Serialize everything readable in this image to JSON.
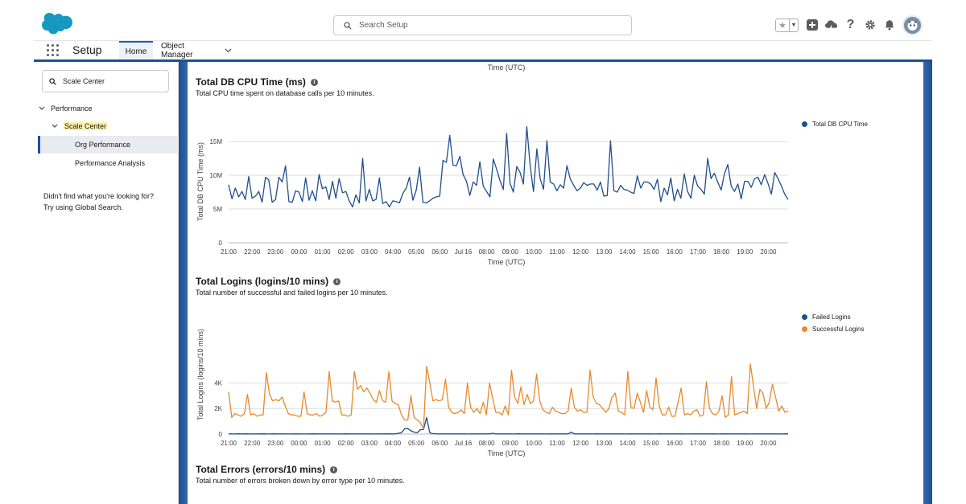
{
  "header": {
    "search_placeholder": "Search Setup",
    "brand_color": "#1798c1"
  },
  "nav": {
    "app_name": "Setup",
    "tabs": [
      {
        "label": "Home"
      },
      {
        "label": "Object Manager"
      }
    ]
  },
  "sidebar": {
    "quick_find_value": "Scale Center",
    "items": [
      {
        "label": "Performance"
      },
      {
        "label": "Scale Center"
      },
      {
        "label": "Org Performance"
      },
      {
        "label": "Performance Analysis"
      }
    ],
    "help_line1": "Didn't find what you're looking for?",
    "help_line2": "Try using Global Search."
  },
  "main": {
    "top_axis_title": "Time (UTC)",
    "cpu_section": {
      "title": "Total DB CPU Time (ms)",
      "subtitle": "Total CPU time spent on database calls per 10 minutes."
    },
    "logins_section": {
      "title": "Total Logins (logins/10 mins)",
      "subtitle": "Total number of successful and failed logins per 10 minutes."
    },
    "errors_section": {
      "title": "Total Errors (errors/10 mins)",
      "subtitle": "Total number of errors broken down by error type per 10 minutes."
    }
  },
  "chart_data": [
    {
      "type": "line",
      "title": "Total DB CPU Time (ms)",
      "xlabel": "Time (UTC)",
      "ylabel": "Total DB CPU Time (ms)",
      "x_ticks": [
        "21:00",
        "22:00",
        "23:00",
        "00:00",
        "01:00",
        "02:00",
        "03:00",
        "04:00",
        "05:00",
        "06:00",
        "Jul 16",
        "08:00",
        "09:00",
        "10:00",
        "11:00",
        "12:00",
        "13:00",
        "14:00",
        "15:00",
        "16:00",
        "17:00",
        "18:00",
        "19:00",
        "20:00"
      ],
      "y_ticks": [
        "0",
        "5M",
        "10M",
        "15M"
      ],
      "ylim": [
        0,
        17500000
      ],
      "legend_position": "right",
      "grid": true,
      "series": [
        {
          "name": "Total DB CPU Time",
          "color": "#1f4e8c",
          "values": [
            8.6,
            6.5,
            8.1,
            6.8,
            7.6,
            6.4,
            9.8,
            6.6,
            6.9,
            7.6,
            6.0,
            9.7,
            9.3,
            6.0,
            6.4,
            9.7,
            9.0,
            11.4,
            6.1,
            6.0,
            7.7,
            7.5,
            6.1,
            9.6,
            6.3,
            7.7,
            6.2,
            10.1,
            8.0,
            8.3,
            6.4,
            9.1,
            6.6,
            9.5,
            7.4,
            7.6,
            6.2,
            5.3,
            7.1,
            5.9,
            12.5,
            6.2,
            7.9,
            6.2,
            6.4,
            9.6,
            5.8,
            6.1,
            5.3,
            6.2,
            6.1,
            5.9,
            7.3,
            8.1,
            9.7,
            6.3,
            7.8,
            11.2,
            6.0,
            5.9,
            6.2,
            6.6,
            6.8,
            6.9,
            12.2,
            11.9,
            15.9,
            11.5,
            11.4,
            12.8,
            10.1,
            9.1,
            7.0,
            9.0,
            8.5,
            12.0,
            8.4,
            7.6,
            6.8,
            12.4,
            10.9,
            9.2,
            7.9,
            16.2,
            8.8,
            7.5,
            11.3,
            10.4,
            8.7,
            17.2,
            11.4,
            7.6,
            13.9,
            9.5,
            7.9,
            15.1,
            9.0,
            8.7,
            7.7,
            8.6,
            8.1,
            11.4,
            9.4,
            8.5,
            7.7,
            8.1,
            8.9,
            8.5,
            8.7,
            8.7,
            7.8,
            9.0,
            6.9,
            7.0,
            15.1,
            7.7,
            7.5,
            8.5,
            7.9,
            7.8,
            7.5,
            7.3,
            9.9,
            8.1,
            9.0,
            9.0,
            8.7,
            7.9,
            9.4,
            6.1,
            8.1,
            7.1,
            9.6,
            6.2,
            7.9,
            6.6,
            10.2,
            7.6,
            6.6,
            10.0,
            8.4,
            7.9,
            7.2,
            12.5,
            9.5,
            10.3,
            9.0,
            7.8,
            10.2,
            11.6,
            8.4,
            7.6,
            8.7,
            6.5,
            9.1,
            9.1,
            8.2,
            9.5,
            9.7,
            8.6,
            10.1,
            8.8,
            7.2,
            10.4,
            9.5,
            8.4,
            7.2,
            6.4
          ]
        }
      ]
    },
    {
      "type": "line",
      "title": "Total Logins (logins/10 mins)",
      "xlabel": "Time (UTC)",
      "ylabel": "Total Logins (logins/10 mins)",
      "x_ticks": [
        "21:00",
        "22:00",
        "23:00",
        "00:00",
        "01:00",
        "02:00",
        "03:00",
        "04:00",
        "05:00",
        "06:00",
        "Jul 16",
        "08:00",
        "09:00",
        "10:00",
        "11:00",
        "12:00",
        "13:00",
        "14:00",
        "15:00",
        "16:00",
        "17:00",
        "18:00",
        "19:00",
        "20:00"
      ],
      "y_ticks": [
        "0",
        "2K",
        "4K"
      ],
      "ylim": [
        0,
        5600
      ],
      "legend_position": "right",
      "grid": true,
      "series": [
        {
          "name": "Failed Logins",
          "color": "#1f4e8c",
          "values": [
            10,
            15,
            8,
            20,
            12,
            10,
            18,
            9,
            14,
            11,
            10,
            16,
            12,
            9,
            20,
            11,
            13,
            10,
            15,
            9,
            12,
            10,
            14,
            11,
            9,
            13,
            10,
            18,
            12,
            11,
            15,
            10,
            12,
            14,
            11,
            10,
            9,
            16,
            12,
            10,
            11,
            13,
            10,
            12,
            15,
            10,
            9,
            11,
            12,
            10,
            14,
            20,
            10,
            12,
            60,
            110,
            420,
            430,
            250,
            150,
            100,
            340,
            350,
            1300,
            100,
            30,
            20,
            12,
            15,
            10,
            11,
            13,
            10,
            12,
            15,
            10,
            9,
            11,
            12,
            10,
            14,
            12,
            10,
            12,
            60,
            15,
            10,
            12,
            14,
            11,
            10,
            9,
            16,
            12,
            10,
            11,
            13,
            10,
            12,
            15,
            10,
            9,
            11,
            12,
            10,
            14,
            12,
            10,
            12,
            150,
            15,
            10,
            12,
            14,
            11,
            10,
            9,
            16,
            12,
            10,
            11,
            13,
            10,
            12,
            15,
            10,
            9,
            11,
            12,
            10,
            14,
            12,
            10,
            12,
            15,
            10,
            9,
            16,
            12,
            10,
            11,
            13,
            10,
            12,
            15,
            10,
            9,
            11,
            12,
            10,
            14,
            12,
            10,
            12,
            15,
            10,
            9,
            16,
            12,
            10,
            11,
            13,
            10,
            12,
            15,
            10,
            9,
            11,
            12,
            10,
            14,
            12,
            10,
            12,
            15,
            10,
            9,
            16,
            12
          ]
        },
        {
          "name": "Successful Logins",
          "color": "#e8892b",
          "values": [
            3300,
            1300,
            1600,
            1500,
            1400,
            1600,
            3100,
            1500,
            1600,
            1400,
            1500,
            1500,
            4800,
            3100,
            2600,
            2700,
            2600,
            2900,
            2200,
            1600,
            1500,
            1500,
            1400,
            1400,
            3300,
            1600,
            1500,
            1500,
            1600,
            1400,
            1500,
            1700,
            4900,
            2600,
            2500,
            2600,
            1500,
            1500,
            1400,
            1500,
            4900,
            3500,
            3800,
            3300,
            3600,
            3200,
            2700,
            2500,
            3400,
            2600,
            2500,
            4900,
            2600,
            2400,
            2300,
            1500,
            1100,
            1100,
            3000,
            1300,
            1100,
            900,
            400,
            5300,
            4000,
            2600,
            2700,
            2600,
            2700,
            4300,
            2100,
            1700,
            1600,
            1700,
            1900,
            1600,
            4000,
            2100,
            1700,
            2000,
            1600,
            2500,
            1500,
            4000,
            2800,
            1700,
            1700,
            1500,
            2200,
            1500,
            5000,
            2900,
            2400,
            3700,
            2300,
            3100,
            2400,
            2600,
            4700,
            2600,
            1900,
            1700,
            1600,
            2100,
            1800,
            1700,
            1600,
            1600,
            1800,
            3600,
            2100,
            1800,
            1900,
            1700,
            1700,
            5000,
            2900,
            2400,
            2300,
            2000,
            1700,
            2000,
            2900,
            3200,
            1800,
            1700,
            1500,
            4900,
            2100,
            2000,
            3200,
            2500,
            1700,
            3400,
            2100,
            1900,
            4400,
            2200,
            1500,
            1500,
            2100,
            1400,
            1400,
            2500,
            3600,
            1500,
            1600,
            1500,
            1800,
            1900,
            1400,
            1500,
            4100,
            2000,
            1600,
            1500,
            1800,
            3000,
            1300,
            1500,
            4500,
            1500,
            1600,
            1700,
            1800,
            1600,
            5500,
            3700,
            2000,
            3500,
            3200,
            2000,
            2500,
            3900,
            2900,
            1800,
            2200,
            1700,
            1800
          ]
        }
      ]
    }
  ]
}
